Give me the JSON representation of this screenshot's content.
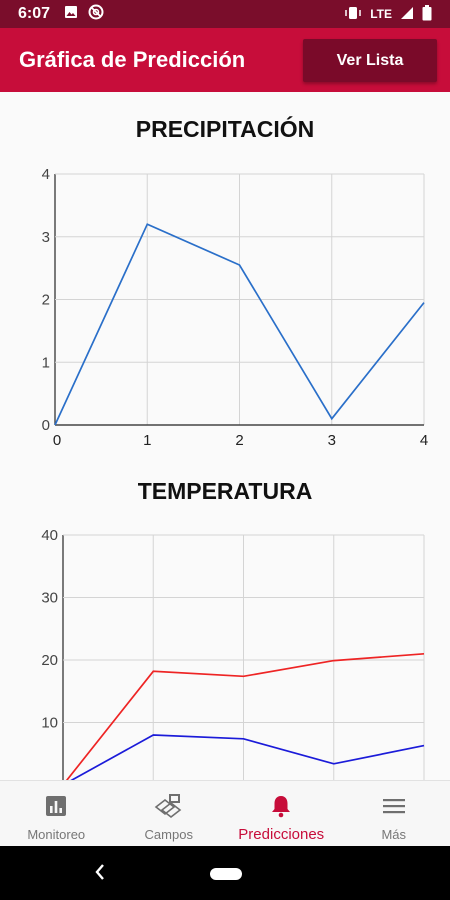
{
  "status_bar": {
    "time": "6:07",
    "network": "LTE",
    "icons": [
      "image-icon",
      "no-disturb-icon",
      "vibrate-icon",
      "signal-icon",
      "battery-icon"
    ]
  },
  "app_bar": {
    "title": "Gráfica de Predicción",
    "action_label": "Ver Lista",
    "bg_color": "#c70d3a",
    "button_color": "#7a0a29"
  },
  "charts": {
    "precip_title": "PRECIPITACIÓN",
    "temp_title": "TEMPERATURA"
  },
  "chart_data": [
    {
      "type": "line",
      "title": "PRECIPITACIÓN",
      "x": [
        0,
        1,
        2,
        3,
        4
      ],
      "xlim": [
        0,
        4
      ],
      "ylim": [
        0,
        4
      ],
      "xticks": [
        "0",
        "1",
        "2",
        "3",
        "4"
      ],
      "yticks": [
        "0",
        "1",
        "2",
        "3",
        "4"
      ],
      "grid": true,
      "series": [
        {
          "values": [
            0,
            3.2,
            2.55,
            0.1,
            1.95
          ],
          "color": "#2a6fc9"
        }
      ]
    },
    {
      "type": "line",
      "title": "TEMPERATURA",
      "x": [
        0,
        1,
        2,
        3,
        4
      ],
      "xlim": [
        0,
        4
      ],
      "ylim": [
        0,
        40
      ],
      "yticks": [
        "10",
        "20",
        "30",
        "40"
      ],
      "grid": true,
      "series": [
        {
          "values": [
            0,
            18.2,
            17.4,
            19.9,
            21
          ],
          "color": "#ee2424"
        },
        {
          "values": [
            0,
            8,
            7.4,
            3.4,
            6.3
          ],
          "color": "#1b1bd9"
        }
      ]
    }
  ],
  "bottom_nav": {
    "items": [
      {
        "label": "Monitoreo",
        "icon": "bar-chart-icon"
      },
      {
        "label": "Campos",
        "icon": "fields-layers-icon"
      },
      {
        "label": "Predicciones",
        "icon": "bell-icon"
      },
      {
        "label": "Más",
        "icon": "menu-icon"
      }
    ],
    "active_index": 2
  }
}
